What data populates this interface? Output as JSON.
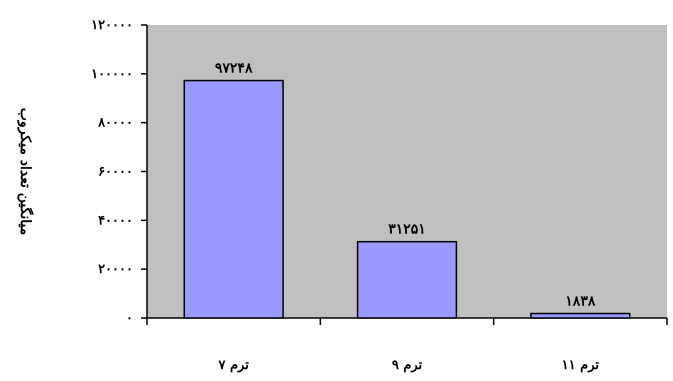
{
  "chart_data": {
    "type": "bar",
    "categories": [
      "ترم ۷",
      "ترم ۹",
      "ترم ۱۱"
    ],
    "values": [
      97248,
      31251,
      1838
    ],
    "value_labels": [
      "۹۷۲۴۸",
      "۳۱۲۵۱",
      "۱۸۳۸"
    ],
    "ylabel": "میانگین تعداد میکروب",
    "ylim": [
      0,
      120000
    ],
    "yticks": [
      0,
      20000,
      40000,
      60000,
      80000,
      100000,
      120000
    ],
    "ytick_labels": [
      "۰",
      "۲۰۰۰۰",
      "۴۰۰۰۰",
      "۶۰۰۰۰",
      "۸۰۰۰۰",
      "۱۰۰۰۰۰",
      "۱۲۰۰۰۰"
    ],
    "grid": false,
    "legend": "none",
    "colors": {
      "plot_background": "#c0c0c0",
      "bar_fill": "#9999ff",
      "bar_stroke": "#000000"
    }
  }
}
